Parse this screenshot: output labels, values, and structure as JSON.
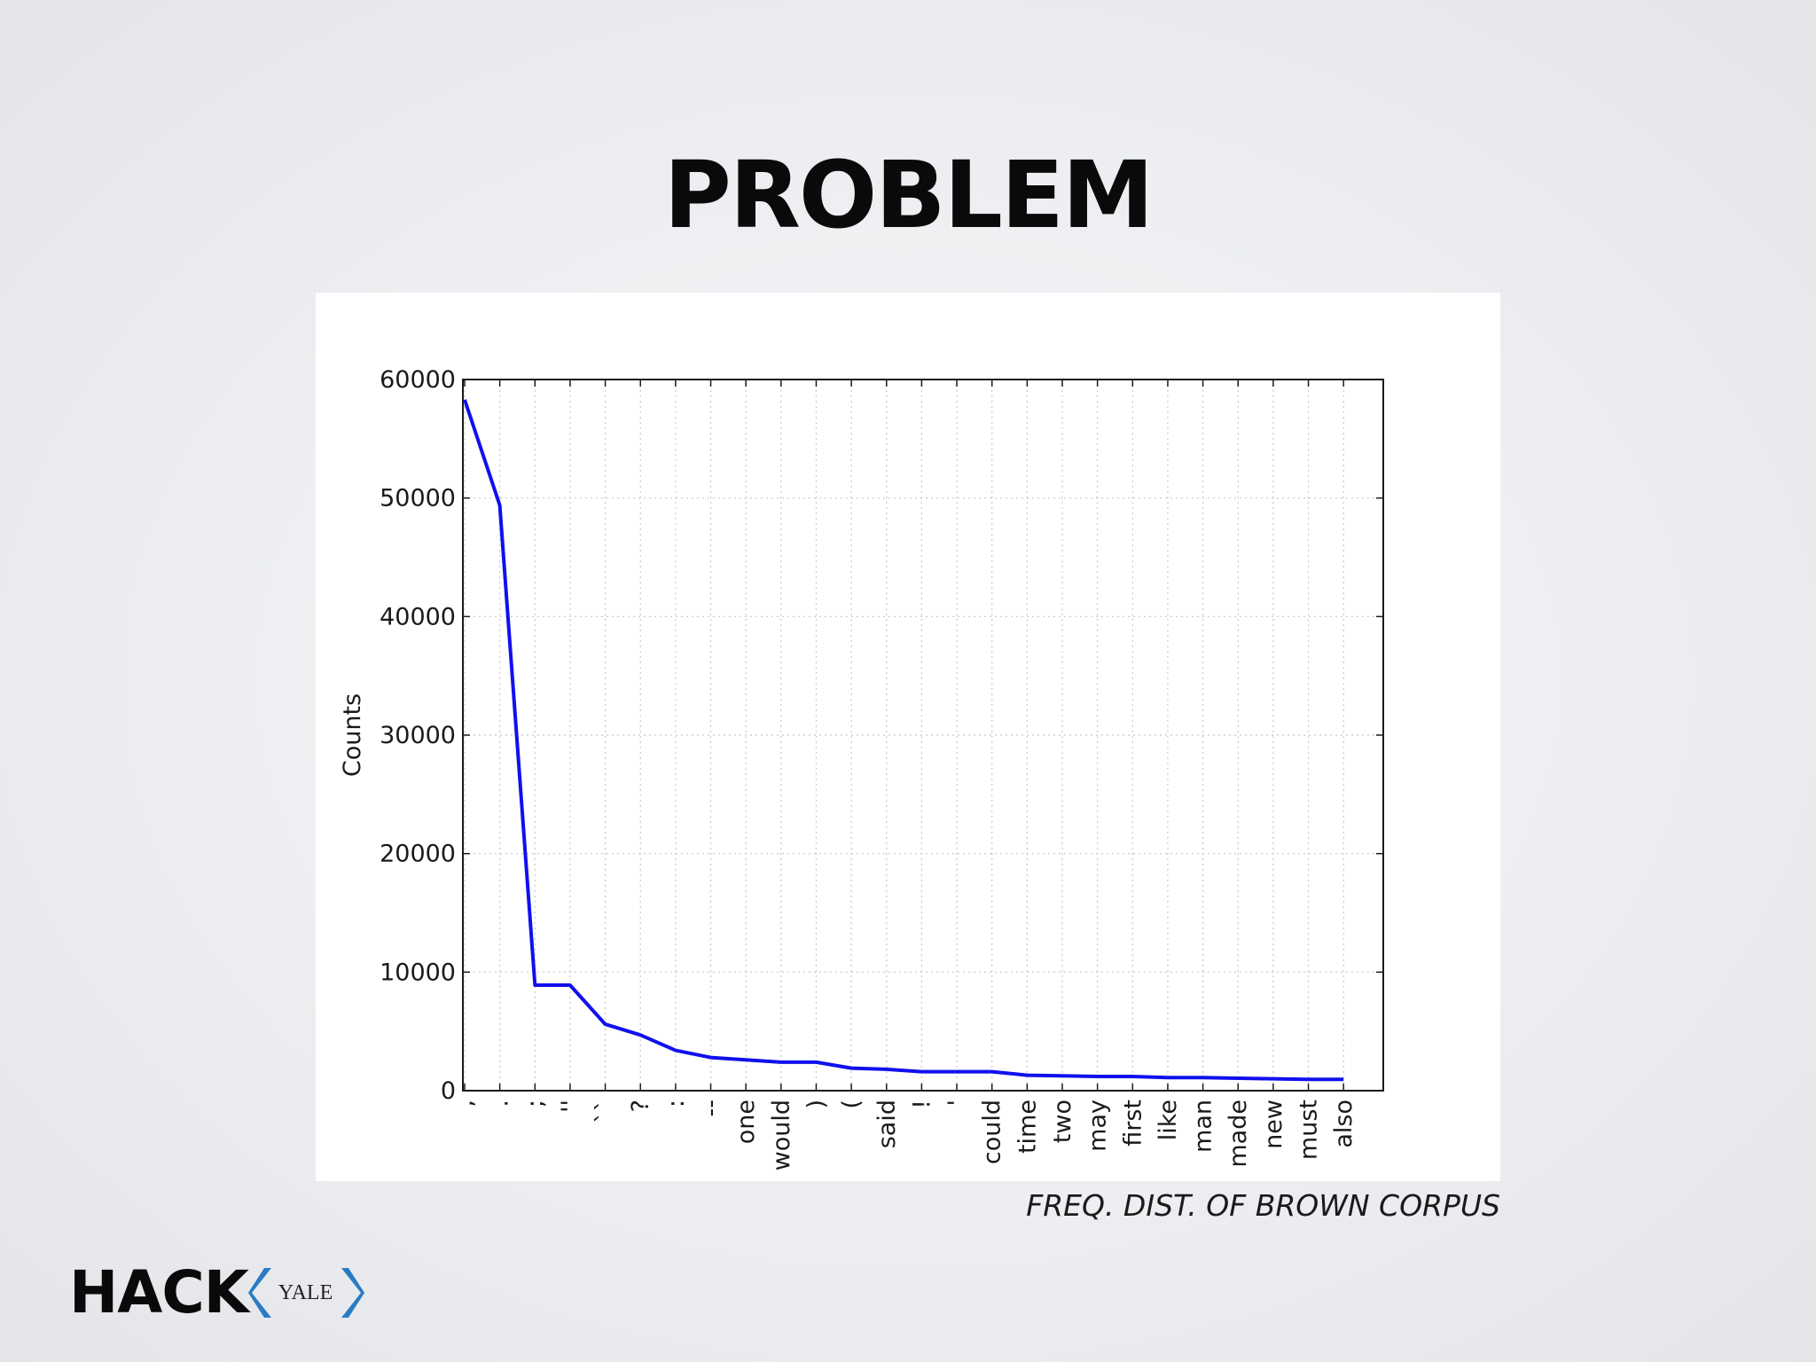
{
  "slide": {
    "title": "PROBLEM",
    "caption": "FREQ. DIST. OF BROWN CORPUS"
  },
  "logo": {
    "main_text": "HACK",
    "sub_text": "YALE",
    "chevron_color": "#2b7bc4"
  },
  "chart_data": {
    "type": "line",
    "title": "",
    "xlabel": "",
    "ylabel": "Counts",
    "categories": [
      ",",
      ".",
      ";",
      "''",
      "``",
      "?",
      ":",
      "--",
      "one",
      "would",
      ")",
      "(",
      "said",
      "!",
      "'",
      "could",
      "time",
      "two",
      "may",
      "first",
      "like",
      "man",
      "made",
      "new",
      "must",
      "also"
    ],
    "values": [
      58300,
      49400,
      8900,
      8900,
      5600,
      4700,
      3400,
      2800,
      2600,
      2400,
      2400,
      1900,
      1800,
      1600,
      1600,
      1600,
      1300,
      1250,
      1200,
      1200,
      1100,
      1100,
      1050,
      1000,
      950,
      950
    ],
    "ylim": [
      0,
      60000
    ],
    "yticks": [
      "0",
      "10000",
      "20000",
      "30000",
      "40000",
      "50000",
      "60000"
    ],
    "grid": true,
    "line_color": "#1010ee"
  }
}
